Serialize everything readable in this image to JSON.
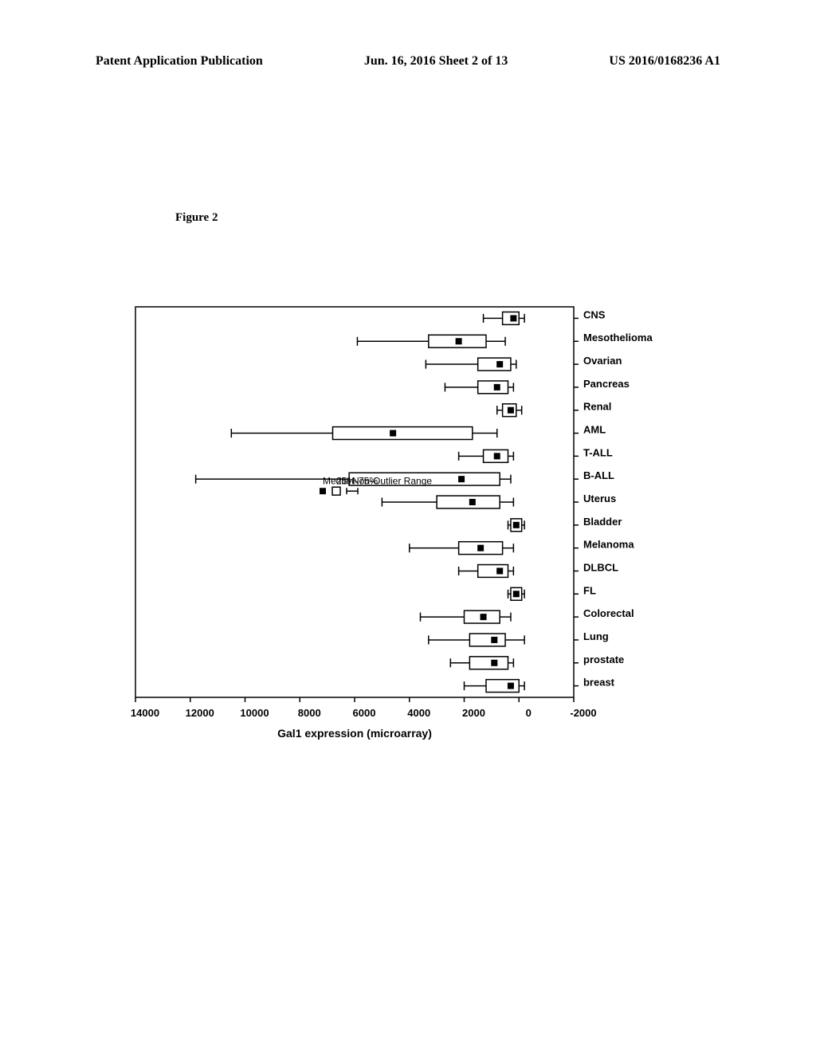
{
  "header": {
    "left": "Patent Application Publication",
    "center": "Jun. 16, 2016  Sheet 2 of 13",
    "right": "US 2016/0168236 A1"
  },
  "figure": {
    "label": "Figure 2",
    "y_axis_label": "Gal1 expression (microarray)",
    "y_min": -2000,
    "y_max": 14000,
    "y_tick_step": 2000,
    "legend": {
      "median": "Median",
      "box": "25%-75%",
      "whisker": "Non-Outlier Range"
    },
    "categories": [
      "breast",
      "prostate",
      "Lung",
      "Colorectal",
      "FL",
      "DLBCL",
      "Melanoma",
      "Bladder",
      "Uterus",
      "B-ALL",
      "T-ALL",
      "AML",
      "Renal",
      "Pancreas",
      "Ovarian",
      "Mesothelioma",
      "CNS"
    ],
    "boxes": [
      {
        "name": "breast",
        "median": 300,
        "q1": 0,
        "q3": 1200,
        "lo": -200,
        "hi": 2000
      },
      {
        "name": "prostate",
        "median": 900,
        "q1": 400,
        "q3": 1800,
        "lo": 200,
        "hi": 2500
      },
      {
        "name": "Lung",
        "median": 900,
        "q1": 500,
        "q3": 1800,
        "lo": -200,
        "hi": 3300
      },
      {
        "name": "Colorectal",
        "median": 1300,
        "q1": 700,
        "q3": 2000,
        "lo": 300,
        "hi": 3600
      },
      {
        "name": "FL",
        "median": 100,
        "q1": -100,
        "q3": 300,
        "lo": -200,
        "hi": 400
      },
      {
        "name": "DLBCL",
        "median": 700,
        "q1": 400,
        "q3": 1500,
        "lo": 200,
        "hi": 2200
      },
      {
        "name": "Melanoma",
        "median": 1400,
        "q1": 600,
        "q3": 2200,
        "lo": 200,
        "hi": 4000
      },
      {
        "name": "Bladder",
        "median": 100,
        "q1": -100,
        "q3": 300,
        "lo": -200,
        "hi": 400
      },
      {
        "name": "Uterus",
        "median": 1700,
        "q1": 700,
        "q3": 3000,
        "lo": 200,
        "hi": 5000
      },
      {
        "name": "B-ALL",
        "median": 2100,
        "q1": 700,
        "q3": 6200,
        "lo": 300,
        "hi": 11800
      },
      {
        "name": "T-ALL",
        "median": 800,
        "q1": 400,
        "q3": 1300,
        "lo": 200,
        "hi": 2200
      },
      {
        "name": "AML",
        "median": 4600,
        "q1": 1700,
        "q3": 6800,
        "lo": 800,
        "hi": 10500
      },
      {
        "name": "Renal",
        "median": 300,
        "q1": 100,
        "q3": 600,
        "lo": -100,
        "hi": 800
      },
      {
        "name": "Pancreas",
        "median": 800,
        "q1": 400,
        "q3": 1500,
        "lo": 200,
        "hi": 2700
      },
      {
        "name": "Ovarian",
        "median": 700,
        "q1": 300,
        "q3": 1500,
        "lo": 100,
        "hi": 3400
      },
      {
        "name": "Mesothelioma",
        "median": 2200,
        "q1": 1200,
        "q3": 3300,
        "lo": 500,
        "hi": 5900
      },
      {
        "name": "CNS",
        "median": 200,
        "q1": 0,
        "q3": 600,
        "lo": -200,
        "hi": 1300
      }
    ],
    "colors": {
      "bg": "#ffffff",
      "axis": "#000000",
      "box_stroke": "#000000",
      "median_fill": "#000000",
      "text": "#000000"
    },
    "stroke_width": 1.5
  }
}
